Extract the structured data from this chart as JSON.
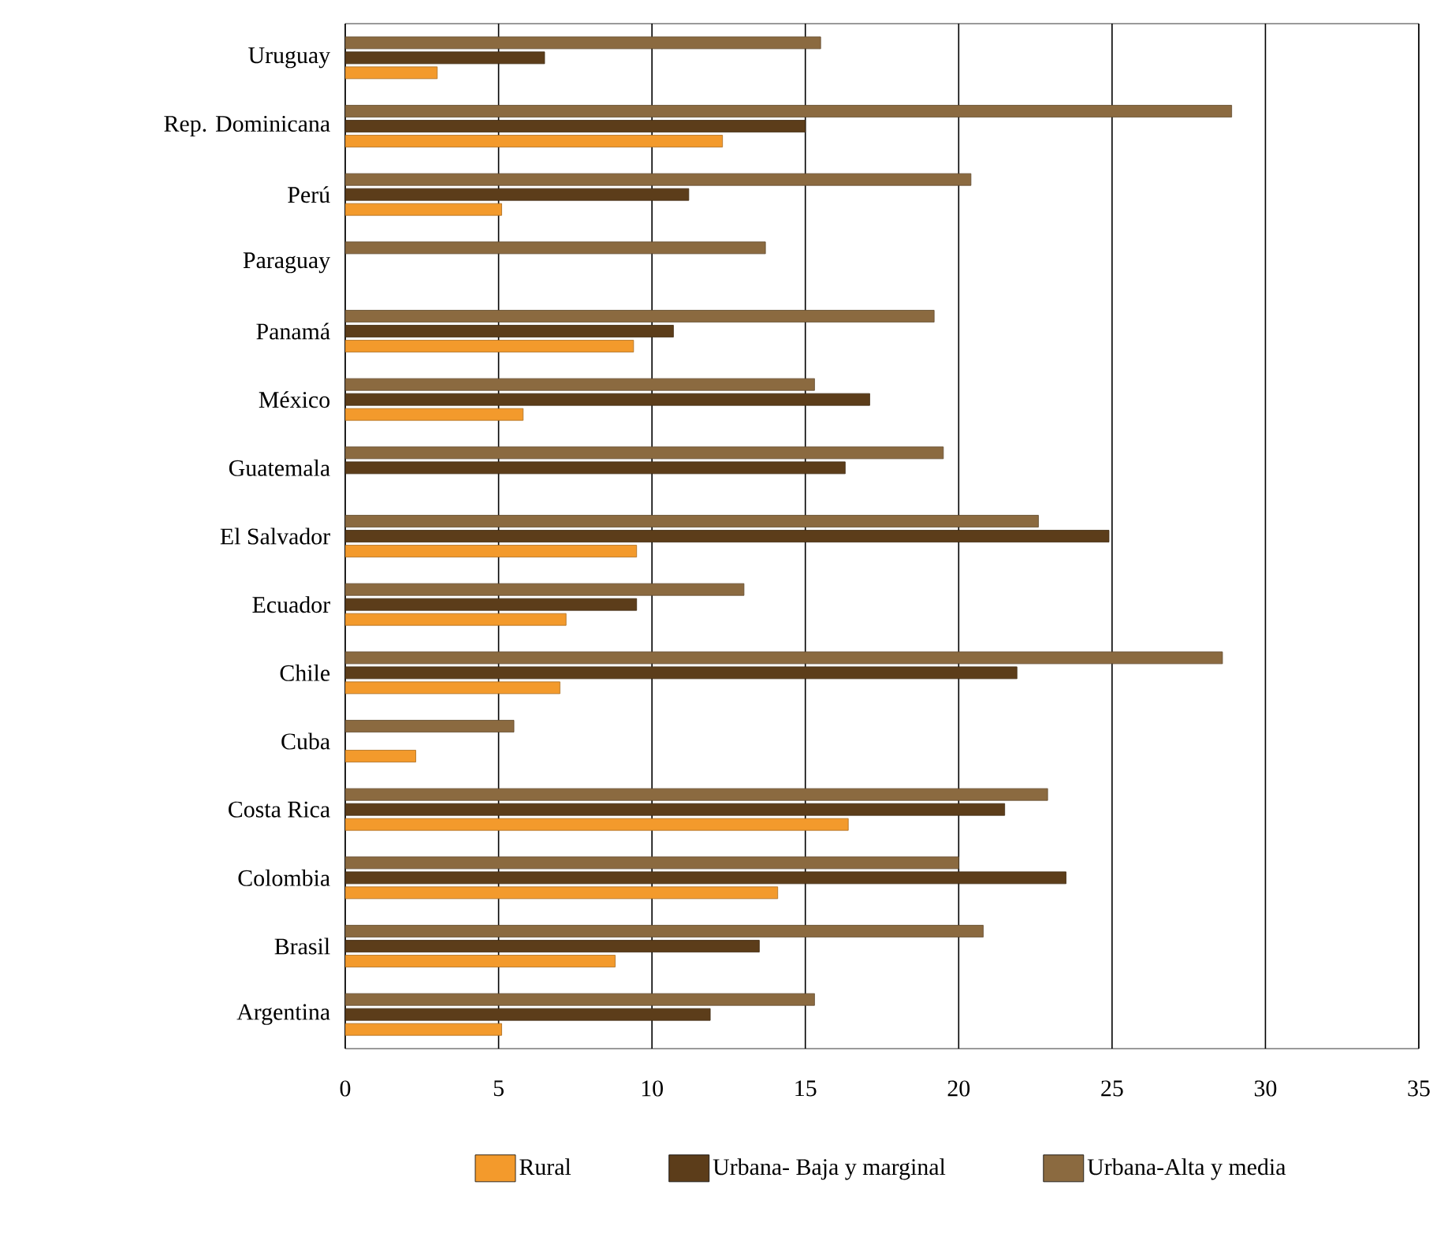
{
  "chart_data": {
    "type": "bar",
    "orientation": "horizontal",
    "categories": [
      "Uruguay",
      "Rep. Dominicana",
      "Perú",
      "Paraguay",
      "Panamá",
      "México",
      "Guatemala",
      "El Salvador",
      "Ecuador",
      "Chile",
      "Cuba",
      "Costa Rica",
      "Colombia",
      "Brasil",
      "Argentina"
    ],
    "series": [
      {
        "name": "Rural",
        "color": "#f39a2c",
        "values": [
          3.0,
          12.3,
          5.1,
          null,
          9.4,
          5.8,
          null,
          9.5,
          7.2,
          7.0,
          2.3,
          16.4,
          14.1,
          8.8,
          5.1
        ]
      },
      {
        "name": "Urbana- Baja y marginal",
        "color": "#5c3d1a",
        "values": [
          6.5,
          15.0,
          11.2,
          null,
          10.7,
          17.1,
          16.3,
          24.9,
          9.5,
          21.9,
          null,
          21.5,
          23.5,
          13.5,
          11.9
        ]
      },
      {
        "name": "Urbana-Alta y media",
        "color": "#8b6a40",
        "values": [
          15.5,
          28.9,
          20.4,
          13.7,
          19.2,
          15.3,
          19.5,
          22.6,
          13.0,
          28.6,
          5.5,
          22.9,
          20.0,
          20.8,
          15.3
        ]
      }
    ],
    "xlim": [
      0,
      35
    ],
    "xticks": [
      0,
      5,
      10,
      15,
      20,
      25,
      30,
      35
    ],
    "grid": "x",
    "legend": "bottom"
  }
}
